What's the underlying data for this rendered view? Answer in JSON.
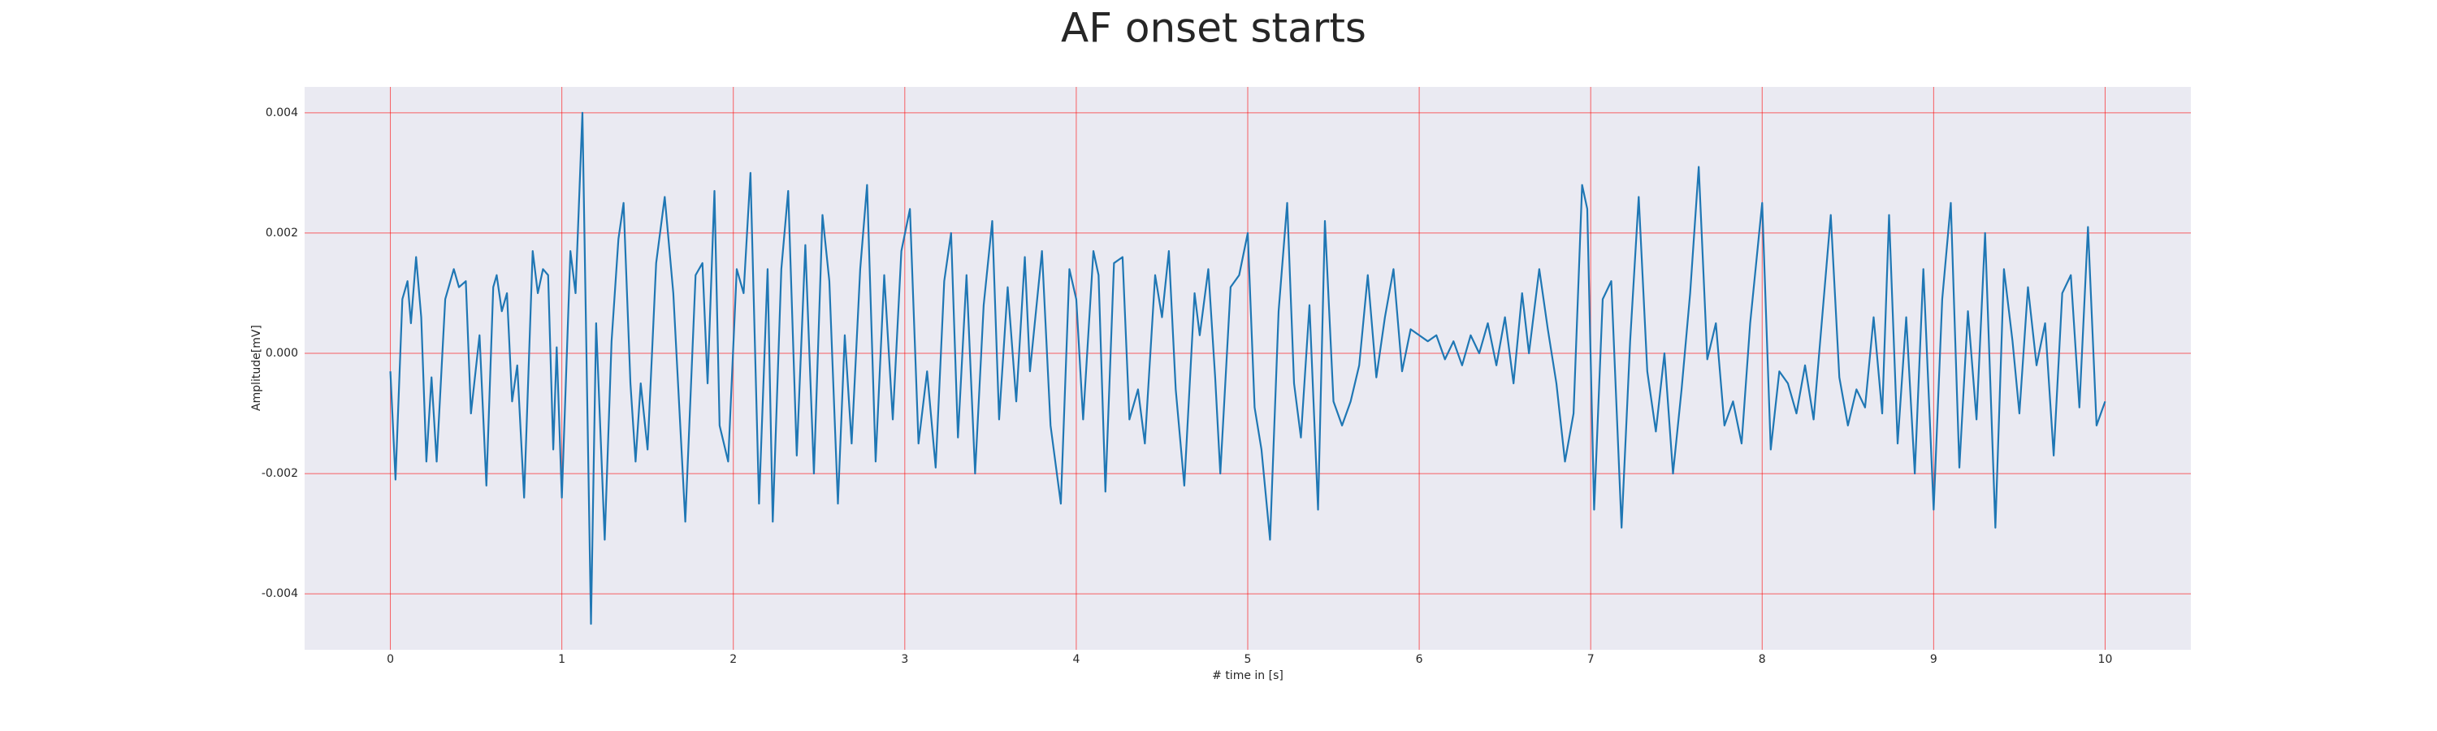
{
  "chart_data": {
    "type": "line",
    "title": "AF onset starts",
    "x_label": "# time in [s]",
    "y_label": "Amplitude[mV]",
    "x": [
      0,
      0.03,
      0.07,
      0.1,
      0.12,
      0.15,
      0.18,
      0.21,
      0.24,
      0.27,
      0.32,
      0.37,
      0.4,
      0.44,
      0.47,
      0.52,
      0.56,
      0.6,
      0.62,
      0.65,
      0.68,
      0.71,
      0.74,
      0.78,
      0.83,
      0.86,
      0.89,
      0.92,
      0.95,
      0.97,
      1.0,
      1.05,
      1.08,
      1.12,
      1.17,
      1.2,
      1.25,
      1.29,
      1.33,
      1.36,
      1.4,
      1.43,
      1.46,
      1.5,
      1.55,
      1.6,
      1.65,
      1.72,
      1.78,
      1.82,
      1.85,
      1.89,
      1.92,
      1.97,
      2.02,
      2.06,
      2.1,
      2.15,
      2.2,
      2.23,
      2.28,
      2.32,
      2.37,
      2.42,
      2.47,
      2.52,
      2.56,
      2.61,
      2.65,
      2.69,
      2.74,
      2.78,
      2.83,
      2.88,
      2.93,
      2.98,
      3.03,
      3.08,
      3.13,
      3.18,
      3.23,
      3.27,
      3.31,
      3.36,
      3.41,
      3.46,
      3.51,
      3.55,
      3.6,
      3.65,
      3.7,
      3.73,
      3.8,
      3.85,
      3.91,
      3.96,
      4.0,
      4.04,
      4.1,
      4.13,
      4.17,
      4.22,
      4.27,
      4.31,
      4.36,
      4.4,
      4.46,
      4.5,
      4.54,
      4.58,
      4.63,
      4.69,
      4.72,
      4.77,
      4.81,
      4.84,
      4.9,
      4.95,
      5.0,
      5.04,
      5.08,
      5.13,
      5.18,
      5.23,
      5.27,
      5.31,
      5.36,
      5.41,
      5.45,
      5.5,
      5.55,
      5.6,
      5.65,
      5.7,
      5.75,
      5.8,
      5.85,
      5.9,
      5.95,
      6.0,
      6.05,
      6.1,
      6.15,
      6.2,
      6.25,
      6.3,
      6.35,
      6.4,
      6.45,
      6.5,
      6.55,
      6.6,
      6.64,
      6.7,
      6.75,
      6.8,
      6.85,
      6.9,
      6.95,
      6.98,
      7.02,
      7.07,
      7.12,
      7.18,
      7.23,
      7.28,
      7.33,
      7.38,
      7.43,
      7.48,
      7.53,
      7.58,
      7.63,
      7.68,
      7.73,
      7.78,
      7.83,
      7.88,
      7.93,
      8.0,
      8.05,
      8.1,
      8.15,
      8.2,
      8.25,
      8.3,
      8.35,
      8.4,
      8.45,
      8.5,
      8.55,
      8.6,
      8.65,
      8.7,
      8.74,
      8.79,
      8.84,
      8.89,
      8.94,
      9.0,
      9.05,
      9.1,
      9.15,
      9.2,
      9.25,
      9.3,
      9.36,
      9.41,
      9.46,
      9.5,
      9.55,
      9.6,
      9.65,
      9.7,
      9.75,
      9.8,
      9.85,
      9.9,
      9.95,
      10.0
    ],
    "series": [
      {
        "color": "#1f77b4",
        "values": [
          -0.0003,
          -0.0021,
          0.0009,
          0.0012,
          0.0005,
          0.0016,
          0.0006,
          -0.0018,
          -0.0004,
          -0.0018,
          0.0009,
          0.0014,
          0.0011,
          0.0012,
          -0.001,
          0.0003,
          -0.0022,
          0.0011,
          0.0013,
          0.0007,
          0.001,
          -0.0008,
          -0.0002,
          -0.0024,
          0.0017,
          0.001,
          0.0014,
          0.0013,
          -0.0016,
          0.0001,
          -0.0024,
          0.0017,
          0.001,
          0.004,
          -0.0045,
          0.0005,
          -0.0031,
          0.0002,
          0.0019,
          0.0025,
          -0.0005,
          -0.0018,
          -0.0005,
          -0.0016,
          0.0015,
          0.0026,
          0.001,
          -0.0028,
          0.0013,
          0.0015,
          -0.0005,
          0.0027,
          -0.0012,
          -0.0018,
          0.0014,
          0.001,
          0.003,
          -0.0025,
          0.0014,
          -0.0028,
          0.0014,
          0.0027,
          -0.0017,
          0.0018,
          -0.002,
          0.0023,
          0.0012,
          -0.0025,
          0.0003,
          -0.0015,
          0.0014,
          0.0028,
          -0.0018,
          0.0013,
          -0.0011,
          0.0017,
          0.0024,
          -0.0015,
          -0.0003,
          -0.0019,
          0.0012,
          0.002,
          -0.0014,
          0.0013,
          -0.002,
          0.0008,
          0.0022,
          -0.0011,
          0.0011,
          -0.0008,
          0.0016,
          -0.0003,
          0.0017,
          -0.0012,
          -0.0025,
          0.0014,
          0.0009,
          -0.0011,
          0.0017,
          0.0013,
          -0.0023,
          0.0015,
          0.0016,
          -0.0011,
          -0.0006,
          -0.0015,
          0.0013,
          0.0006,
          0.0017,
          -0.0006,
          -0.0022,
          0.001,
          0.0003,
          0.0014,
          -0.0004,
          -0.002,
          0.0011,
          0.0013,
          0.002,
          -0.0009,
          -0.0016,
          -0.0031,
          0.0007,
          0.0025,
          -0.0005,
          -0.0014,
          0.0008,
          -0.0026,
          0.0022,
          -0.0008,
          -0.0012,
          -0.0008,
          -0.0002,
          0.0013,
          -0.0004,
          0.0006,
          0.0014,
          -0.0003,
          0.0004,
          0.0003,
          0.0002,
          0.0003,
          -0.0001,
          0.0002,
          -0.0002,
          0.0003,
          0.0,
          0.0005,
          -0.0002,
          0.0006,
          -0.0005,
          0.001,
          0.0,
          0.0014,
          0.0004,
          -0.0005,
          -0.0018,
          -0.001,
          0.0028,
          0.0024,
          -0.0026,
          0.0009,
          0.0012,
          -0.0029,
          0.0002,
          0.0026,
          -0.0003,
          -0.0013,
          0.0,
          -0.002,
          -0.0006,
          0.001,
          0.0031,
          -0.0001,
          0.0005,
          -0.0012,
          -0.0008,
          -0.0015,
          0.0005,
          0.0025,
          -0.0016,
          -0.0003,
          -0.0005,
          -0.001,
          -0.0002,
          -0.0011,
          0.0006,
          0.0023,
          -0.0004,
          -0.0012,
          -0.0006,
          -0.0009,
          0.0006,
          -0.001,
          0.0023,
          -0.0015,
          0.0006,
          -0.002,
          0.0014,
          -0.0026,
          0.0009,
          0.0025,
          -0.0019,
          0.0007,
          -0.0011,
          0.002,
          -0.0029,
          0.0014,
          0.0002,
          -0.001,
          0.0011,
          -0.0002,
          0.0005,
          -0.0017,
          0.001,
          0.0013,
          -0.0009,
          0.0021,
          -0.0012,
          -0.0008
        ]
      }
    ],
    "xlim": [
      -0.5,
      10.5
    ],
    "ylim": [
      -0.00493,
      0.00443
    ],
    "xticks": [
      0,
      1,
      2,
      3,
      4,
      5,
      6,
      7,
      8,
      9,
      10
    ],
    "yticks": [
      -0.004,
      -0.002,
      {
        "value": 0,
        "label": "0.000"
      },
      0.002,
      0.004
    ],
    "grid": true,
    "grid_color": "#ff0000",
    "background": "#eaeaf2"
  }
}
